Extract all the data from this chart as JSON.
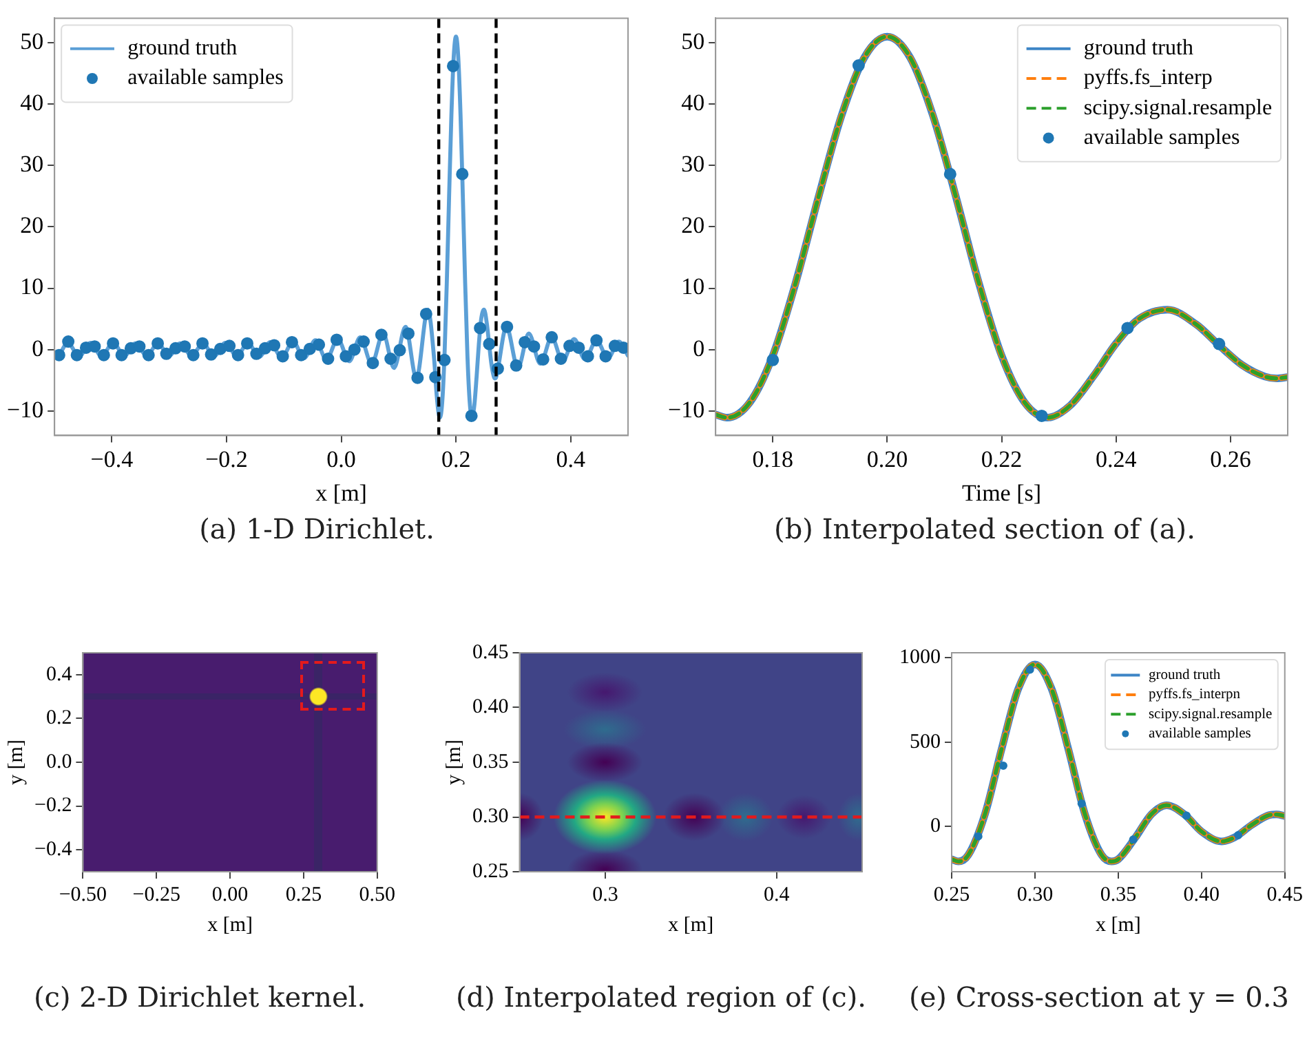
{
  "chart_data": [
    {
      "type": "line",
      "title": "(a) 1-D Dirichlet.",
      "xlabel": "x [m]",
      "xlim": [
        -0.5,
        0.5
      ],
      "ylim": [
        -14,
        54
      ],
      "xticks": [
        -0.4,
        -0.2,
        {
          "value": 0,
          "label": "0.0"
        },
        0.2,
        0.4
      ],
      "yticks": [
        -10,
        0,
        10,
        20,
        30,
        40,
        50
      ],
      "legend": "top left",
      "ref_lines": [
        {
          "axis": "x",
          "value": 0.17,
          "color": "#000000",
          "line_style": "dashed"
        },
        {
          "axis": "x",
          "value": 0.27,
          "color": "#000000",
          "line_style": "dashed"
        }
      ],
      "series": [
        {
          "name": "ground truth",
          "type": "line",
          "color": "#5b9fd6",
          "line_style": "solid",
          "marker": "none",
          "x": [
            -0.5,
            -0.496,
            -0.477,
            -0.457,
            -0.437,
            -0.418,
            -0.398,
            -0.378,
            -0.359,
            -0.339,
            -0.32,
            -0.3,
            -0.281,
            -0.261,
            -0.241,
            -0.222,
            -0.202,
            -0.182,
            -0.163,
            -0.143,
            -0.124,
            -0.104,
            -0.084,
            -0.065,
            -0.045,
            -0.026,
            -0.006,
            0.014,
            0.033,
            0.053,
            0.073,
            0.092,
            0.112,
            0.131,
            0.151,
            0.162,
            0.166,
            0.17,
            0.172,
            0.176,
            0.18,
            0.184,
            0.188,
            0.192,
            0.196,
            0.2,
            0.204,
            0.208,
            0.212,
            0.216,
            0.22,
            0.224,
            0.228,
            0.232,
            0.236,
            0.24,
            0.244,
            0.249,
            0.254,
            0.258,
            0.262,
            0.266,
            0.268,
            0.27,
            0.288,
            0.308,
            0.327,
            0.347,
            0.367,
            0.386,
            0.406,
            0.425,
            0.445,
            0.465,
            0.484,
            0.5
          ],
          "values": [
            -1.0,
            -1.2,
            1.1,
            -1.1,
            1.1,
            -1.1,
            1.1,
            -1.0,
            1.0,
            -1.0,
            1.0,
            -1.0,
            1.0,
            -1.0,
            1.0,
            -1.1,
            1.1,
            -1.1,
            1.1,
            -1.2,
            1.2,
            -1.3,
            1.3,
            -1.4,
            1.5,
            -1.6,
            1.7,
            -1.9,
            2.0,
            -2.3,
            2.6,
            -3.0,
            3.7,
            -4.7,
            6.5,
            -1.6,
            -7.0,
            -10.6,
            -11.1,
            -8.6,
            -1.0,
            10.9,
            24.9,
            38.1,
            47.6,
            51,
            47.6,
            38.1,
            24.9,
            10.9,
            -1.0,
            -8.6,
            -11.1,
            -9.1,
            -4.4,
            1.0,
            5.0,
            6.5,
            4.1,
            0.7,
            -2.5,
            -4.4,
            -4.7,
            -4.5,
            3.7,
            -3.0,
            2.6,
            -2.3,
            2.0,
            -1.9,
            1.7,
            -1.6,
            1.5,
            -1.4,
            1.3,
            -1.0
          ]
        },
        {
          "name": "available samples",
          "type": "scatter",
          "color": "#1f77b4",
          "marker": "circle",
          "x": [
            -0.492,
            -0.476,
            -0.461,
            -0.445,
            -0.43,
            -0.414,
            -0.398,
            -0.383,
            -0.367,
            -0.352,
            -0.336,
            -0.32,
            -0.305,
            -0.289,
            -0.273,
            -0.258,
            -0.242,
            -0.227,
            -0.211,
            -0.195,
            -0.18,
            -0.164,
            -0.148,
            -0.133,
            -0.117,
            -0.102,
            -0.086,
            -0.07,
            -0.055,
            -0.039,
            -0.023,
            -0.008,
            0.008,
            0.023,
            0.039,
            0.055,
            0.07,
            0.086,
            0.102,
            0.117,
            0.133,
            0.148,
            0.164,
            0.18,
            0.195,
            0.211,
            0.227,
            0.242,
            0.258,
            0.273,
            0.289,
            0.305,
            0.32,
            0.336,
            0.352,
            0.367,
            0.383,
            0.398,
            0.414,
            0.43,
            0.445,
            0.461,
            0.477,
            0.492
          ],
          "values": [
            -0.9,
            1.3,
            -0.9,
            0.3,
            0.5,
            -0.9,
            1.0,
            -0.9,
            0.2,
            0.5,
            -0.9,
            1.0,
            -0.7,
            0.2,
            0.5,
            -0.9,
            1.0,
            -0.8,
            0.1,
            0.6,
            -0.9,
            1.0,
            -0.7,
            0.2,
            0.7,
            -1.1,
            1.2,
            -0.9,
            0.1,
            0.8,
            -1.5,
            1.6,
            -1.1,
            0,
            1.3,
            -2.2,
            2.4,
            -1.5,
            -0.1,
            2.6,
            -4.6,
            5.8,
            -4.5,
            -1.7,
            46.2,
            28.6,
            -10.8,
            3.5,
            0.9,
            -3.1,
            3.7,
            -2.6,
            1.2,
            0.5,
            -1.6,
            2.0,
            -1.5,
            0.6,
            0.3,
            -1.1,
            1.5,
            -1.1,
            0.6,
            0.3
          ]
        }
      ]
    },
    {
      "type": "line",
      "title": "(b) Interpolated section of (a).",
      "xlabel": "Time [s]",
      "xlim": [
        0.17,
        0.27
      ],
      "ylim": [
        -14,
        54
      ],
      "xticks": [
        0.18,
        {
          "value": 0.2,
          "label": "0.20"
        },
        0.22,
        0.24,
        0.26
      ],
      "yticks": [
        -10,
        0,
        10,
        20,
        30,
        40,
        50
      ],
      "legend": "top right",
      "series": [
        {
          "name": "ground truth",
          "type": "line",
          "color": "#3d85c6",
          "line_style": "solid",
          "marker": "none",
          "x": [
            0.17,
            0.172,
            0.176,
            0.18,
            0.184,
            0.188,
            0.192,
            0.196,
            0.2,
            0.204,
            0.208,
            0.212,
            0.216,
            0.22,
            0.224,
            0.228,
            0.232,
            0.236,
            0.24,
            0.244,
            0.249,
            0.254,
            0.258,
            0.262,
            0.266,
            0.268,
            0.27
          ],
          "values": [
            -10.6,
            -11.1,
            -8.6,
            -1.0,
            10.9,
            24.9,
            38.1,
            47.6,
            51,
            47.6,
            38.1,
            24.9,
            10.9,
            -1.0,
            -8.6,
            -11.1,
            -9.1,
            -4.4,
            1.0,
            5.0,
            6.5,
            4.1,
            0.7,
            -2.5,
            -4.4,
            -4.7,
            -4.5
          ]
        },
        {
          "name": "pyffs.fs_interp",
          "type": "line",
          "color": "#ff7f0e",
          "line_style": "dashed",
          "marker": "none",
          "x": [
            0.17,
            0.172,
            0.176,
            0.18,
            0.184,
            0.188,
            0.192,
            0.196,
            0.2,
            0.204,
            0.208,
            0.212,
            0.216,
            0.22,
            0.224,
            0.228,
            0.232,
            0.236,
            0.24,
            0.244,
            0.249,
            0.254,
            0.258,
            0.262,
            0.266,
            0.268,
            0.27
          ],
          "values": [
            -10.6,
            -11.1,
            -8.6,
            -1.0,
            10.9,
            24.9,
            38.1,
            47.6,
            51,
            47.6,
            38.1,
            24.9,
            10.9,
            -1.0,
            -8.6,
            -11.1,
            -9.1,
            -4.4,
            1.0,
            5.0,
            6.5,
            4.1,
            0.7,
            -2.5,
            -4.4,
            -4.7,
            -4.5
          ]
        },
        {
          "name": "scipy.signal.resample",
          "type": "line",
          "color": "#2ca02c",
          "line_style": "dashed",
          "marker": "none",
          "x": [
            0.17,
            0.172,
            0.176,
            0.18,
            0.184,
            0.188,
            0.192,
            0.196,
            0.2,
            0.204,
            0.208,
            0.212,
            0.216,
            0.22,
            0.224,
            0.228,
            0.232,
            0.236,
            0.24,
            0.244,
            0.249,
            0.254,
            0.258,
            0.262,
            0.266,
            0.268,
            0.27
          ],
          "values": [
            -10.6,
            -11.1,
            -8.6,
            -1.0,
            10.9,
            24.9,
            38.1,
            47.6,
            51,
            47.6,
            38.1,
            24.9,
            10.9,
            -1.0,
            -8.6,
            -11.1,
            -9.1,
            -4.4,
            1.0,
            5.0,
            6.5,
            4.1,
            0.7,
            -2.5,
            -4.4,
            -4.7,
            -4.5
          ]
        },
        {
          "name": "available samples",
          "type": "scatter",
          "color": "#1f77b4",
          "marker": "circle",
          "x": [
            0.18,
            0.195,
            0.211,
            0.227,
            0.242,
            0.258
          ],
          "values": [
            -1.7,
            46.3,
            28.6,
            -10.8,
            3.5,
            0.9
          ]
        }
      ]
    },
    {
      "type": "heatmap",
      "title": "(c) 2-D Dirichlet kernel.",
      "xlabel": "x [m]",
      "ylabel": "y [m]",
      "xlim": [
        -0.5,
        0.5
      ],
      "ylim": [
        -0.5,
        0.5
      ],
      "xticks": [
        {
          "value": -0.5,
          "label": "−0.50"
        },
        -0.25,
        {
          "value": 0,
          "label": "0.00"
        },
        0.25,
        {
          "value": 0.5,
          "label": "0.50"
        }
      ],
      "yticks": [
        -0.4,
        -0.2,
        {
          "value": 0,
          "label": "0.0"
        },
        0.2,
        0.4
      ]
    },
    {
      "type": "heatmap",
      "title": "(d) Interpolated region of (c).",
      "xlabel": "x [m]",
      "ylabel": "y [m]",
      "xlim": [
        0.25,
        0.45
      ],
      "ylim": [
        0.25,
        0.45
      ],
      "xticks": [
        0.3,
        0.4
      ],
      "yticks": [
        0.25,
        {
          "value": 0.3,
          "label": "0.30"
        },
        0.35,
        {
          "value": 0.4,
          "label": "0.40"
        },
        0.45
      ],
      "ref_lines": [
        {
          "axis": "y",
          "value": 0.3,
          "color": "#e41a1c",
          "line_style": "dashed"
        }
      ]
    },
    {
      "type": "line",
      "title": "(e) Cross-section at y = 0.3",
      "xlabel": "x [m]",
      "xlim": [
        0.25,
        0.45
      ],
      "ylim": [
        -270,
        1030
      ],
      "xticks": [
        0.25,
        {
          "value": 0.3,
          "label": "0.30"
        },
        0.35,
        {
          "value": 0.4,
          "label": "0.40"
        },
        0.45
      ],
      "yticks": [
        0,
        500,
        1000
      ],
      "legend": "top right",
      "series": [
        {
          "name": "ground truth",
          "type": "line",
          "color": "#3d85c6",
          "line_style": "solid",
          "marker": "none",
          "x": [
            0.25,
            0.254,
            0.26,
            0.27,
            0.28,
            0.29,
            0.3,
            0.31,
            0.32,
            0.33,
            0.34,
            0.346,
            0.35,
            0.36,
            0.37,
            0.379,
            0.39,
            0.4,
            0.412,
            0.42,
            0.43,
            0.44,
            0.445,
            0.45
          ],
          "values": [
            -196,
            -209,
            -170,
            72,
            459,
            816,
            961,
            816,
            459,
            72,
            -170,
            -209,
            -196,
            -71,
            72,
            125,
            68,
            -31,
            -90,
            -65,
            7,
            64,
            70,
            61
          ]
        },
        {
          "name": "pyffs.fs_interpn",
          "type": "line",
          "color": "#ff7f0e",
          "line_style": "dashed",
          "marker": "none",
          "x": [
            0.25,
            0.254,
            0.26,
            0.27,
            0.28,
            0.29,
            0.3,
            0.31,
            0.32,
            0.33,
            0.34,
            0.346,
            0.35,
            0.36,
            0.37,
            0.379,
            0.39,
            0.4,
            0.412,
            0.42,
            0.43,
            0.44,
            0.445,
            0.45
          ],
          "values": [
            -196,
            -209,
            -170,
            72,
            459,
            816,
            961,
            816,
            459,
            72,
            -170,
            -209,
            -196,
            -71,
            72,
            125,
            68,
            -31,
            -90,
            -65,
            7,
            64,
            70,
            61
          ]
        },
        {
          "name": "scipy.signal.resample",
          "type": "line",
          "color": "#2ca02c",
          "line_style": "dashed",
          "marker": "none",
          "x": [
            0.25,
            0.254,
            0.26,
            0.27,
            0.28,
            0.29,
            0.3,
            0.31,
            0.32,
            0.33,
            0.34,
            0.346,
            0.35,
            0.36,
            0.37,
            0.379,
            0.39,
            0.4,
            0.412,
            0.42,
            0.43,
            0.44,
            0.445,
            0.45
          ],
          "values": [
            -196,
            -209,
            -170,
            72,
            459,
            816,
            961,
            816,
            459,
            72,
            -170,
            -209,
            -196,
            -71,
            72,
            125,
            68,
            -31,
            -90,
            -65,
            7,
            64,
            70,
            61
          ]
        },
        {
          "name": "available samples",
          "type": "scatter",
          "color": "#1f77b4",
          "marker": "circle",
          "x": [
            0.266,
            0.281,
            0.297,
            0.328,
            0.359,
            0.391,
            0.422
          ],
          "values": [
            -60,
            360,
            930,
            135,
            -79,
            63,
            -53
          ]
        }
      ]
    }
  ]
}
